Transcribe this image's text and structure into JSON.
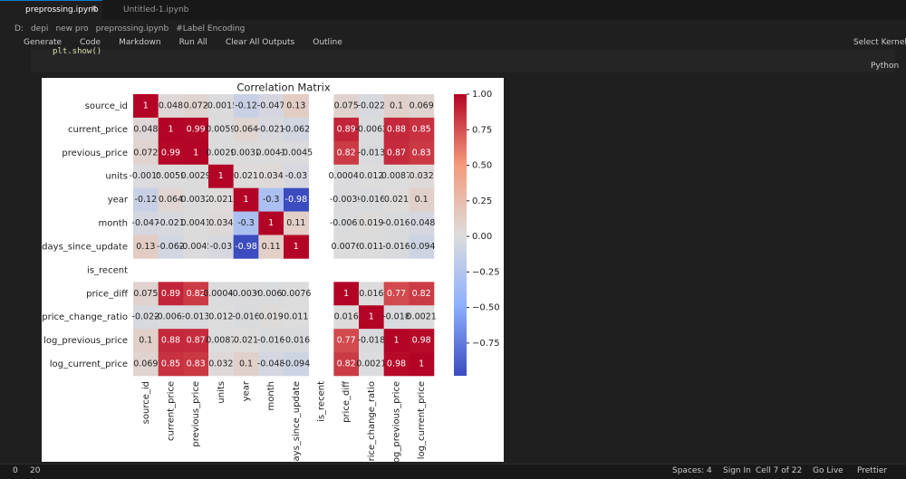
{
  "tabs": [
    "preprossing.ipynb",
    "Untitled-1.ipynb"
  ],
  "breadcrumb": [
    "D:",
    "depi",
    "new pro",
    "preprossing.ipynb",
    "#Label Encoding"
  ],
  "toolbar": [
    "Generate",
    "Code",
    "Markdown",
    "Run All",
    "Clear All Outputs",
    "Outline"
  ],
  "kernel": "Select Kernel",
  "code": "plt.show()",
  "language": "Python",
  "status": {
    "errors": "0",
    "warnings": "20",
    "spaces": "Spaces: 4",
    "sign_in": "Sign In",
    "cell": "Cell 7 of 22",
    "live": "Go Live",
    "prettier": "Prettier"
  },
  "chart_data": {
    "type": "heatmap",
    "title": "Correlation Matrix",
    "categories": [
      "source_id",
      "current_price",
      "previous_price",
      "units",
      "year",
      "month",
      "days_since_update",
      "is_recent",
      "price_diff",
      "price_change_ratio",
      "log_previous_price",
      "log_current_price"
    ],
    "values": [
      [
        1,
        0.048,
        0.072,
        -0.0015,
        -0.12,
        -0.047,
        0.13,
        null,
        0.075,
        -0.022,
        0.1,
        0.069
      ],
      [
        0.048,
        1,
        0.99,
        0.0059,
        0.064,
        -0.021,
        -0.062,
        null,
        0.89,
        -0.0062,
        0.88,
        0.85
      ],
      [
        0.072,
        0.99,
        1,
        0.0029,
        0.0032,
        0.0041,
        -0.0045,
        null,
        0.82,
        -0.013,
        0.87,
        0.83
      ],
      [
        -0.0015,
        0.0059,
        0.0029,
        1,
        0.021,
        0.034,
        -0.03,
        null,
        0.00045,
        0.012,
        0.0087,
        0.032
      ],
      [
        -0.12,
        0.064,
        0.0032,
        0.021,
        1,
        -0.3,
        -0.98,
        null,
        -0.0039,
        -0.016,
        0.021,
        0.1
      ],
      [
        -0.047,
        -0.021,
        0.0041,
        0.034,
        -0.3,
        1,
        0.11,
        null,
        -0.0061,
        0.019,
        -0.016,
        -0.048
      ],
      [
        0.13,
        -0.062,
        -0.0045,
        -0.03,
        -0.98,
        0.11,
        1,
        null,
        0.0076,
        0.011,
        -0.016,
        -0.094
      ],
      [
        null,
        null,
        null,
        null,
        null,
        null,
        null,
        null,
        null,
        null,
        null,
        null
      ],
      [
        0.075,
        0.89,
        0.82,
        0.00045,
        -0.0039,
        -0.0061,
        0.0076,
        null,
        1,
        0.016,
        0.77,
        0.82
      ],
      [
        -0.022,
        -0.0062,
        -0.013,
        0.012,
        -0.016,
        0.019,
        0.011,
        null,
        0.016,
        1,
        -0.018,
        0.0021
      ],
      [
        0.1,
        0.88,
        0.87,
        0.0087,
        0.021,
        -0.016,
        -0.016,
        null,
        0.77,
        -0.018,
        1,
        0.98
      ],
      [
        0.069,
        0.85,
        0.83,
        0.032,
        0.1,
        -0.048,
        -0.094,
        null,
        0.82,
        0.0021,
        0.98,
        1
      ]
    ],
    "colors": [
      "#3b4cc0",
      "#8db0fe",
      "#dddcdc",
      "#f49a7b",
      "#b40426"
    ],
    "ylim": [
      -0.98,
      1
    ],
    "yticks": [
      {
        "value": 1,
        "label": "1.00"
      },
      {
        "value": 0.75,
        "label": "0.75"
      },
      {
        "value": 0.5,
        "label": "0.50"
      },
      {
        "value": 0.25,
        "label": "0.25"
      },
      {
        "value": 0,
        "label": "0.00"
      },
      {
        "value": -0.25,
        "label": "−0.25"
      },
      {
        "value": -0.5,
        "label": "−0.50"
      },
      {
        "value": -0.75,
        "label": "−0.75"
      }
    ]
  }
}
